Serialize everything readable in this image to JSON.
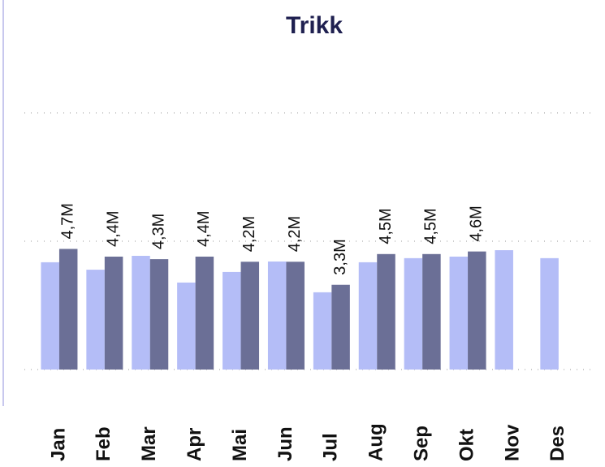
{
  "chart_data": {
    "type": "bar",
    "title": "Trikk",
    "categories": [
      "Jan",
      "Feb",
      "Mar",
      "Apr",
      "Mai",
      "Jun",
      "Jul",
      "Aug",
      "Sep",
      "Okt",
      "Nov",
      "Des"
    ],
    "series": [
      {
        "color": "#b4bdf7",
        "values": [
          4180000,
          3890000,
          4430000,
          3390000,
          3800000,
          4210000,
          3010000,
          4180000,
          4340000,
          4400000,
          4650000,
          4340000
        ]
      },
      {
        "color": "#6b6f96",
        "values": [
          4700000,
          4400000,
          4300000,
          4400000,
          4200000,
          4200000,
          3300000,
          4500000,
          4500000,
          4600000,
          null,
          null
        ],
        "value_labels": [
          "4,7M",
          "4,4M",
          "4,3M",
          "4,4M",
          "4,2M",
          "4,2M",
          "3,3M",
          "4,5M",
          "4,5M",
          "4,6M",
          null,
          null
        ]
      }
    ],
    "ylim": [
      0,
      10000000
    ],
    "yticks": [
      0,
      5000000,
      10000000
    ],
    "grid": true
  }
}
